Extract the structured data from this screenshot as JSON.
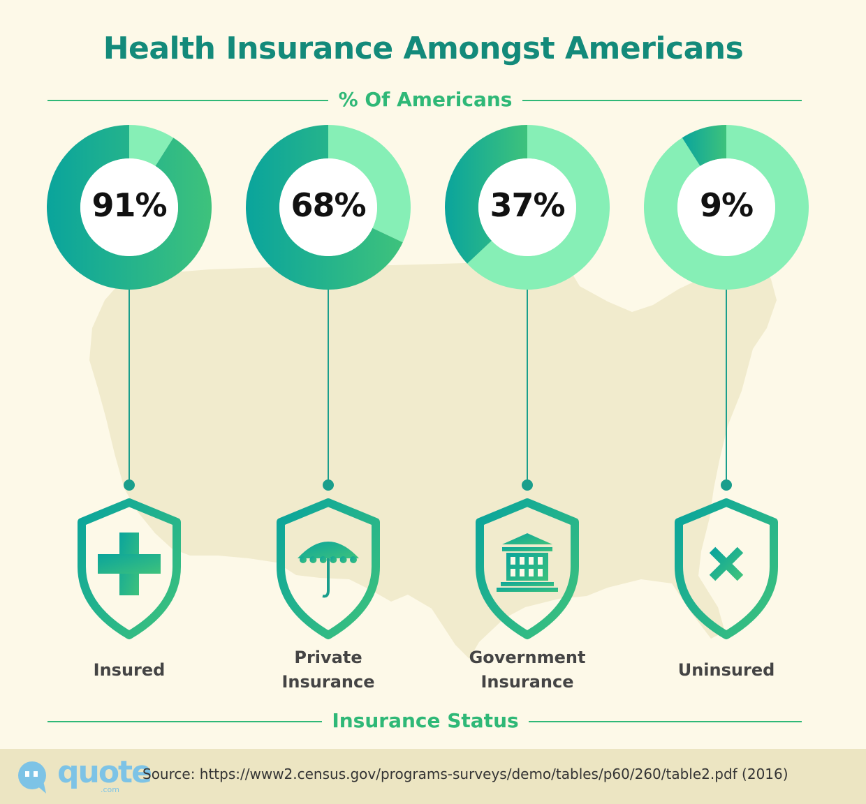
{
  "header": {
    "title": "Health Insurance Amongst Americans",
    "top_axis_label": "% Of Americans",
    "bottom_axis_label": "Insurance Status"
  },
  "chart_data": {
    "type": "donut",
    "title": "Health Insurance Amongst Americans",
    "value_label": "% Of Americans",
    "category_label": "Insurance Status",
    "categories": [
      {
        "name": "Insured",
        "lines": [
          "Insured"
        ],
        "value": 91,
        "label": "91%",
        "icon": "plus-icon"
      },
      {
        "name": "Private Insurance",
        "lines": [
          "Private",
          "Insurance"
        ],
        "value": 68,
        "label": "68%",
        "icon": "umbrella-icon"
      },
      {
        "name": "Government Insurance",
        "lines": [
          "Government",
          "Insurance"
        ],
        "value": 37,
        "label": "37%",
        "icon": "government-building-icon"
      },
      {
        "name": "Uninsured",
        "lines": [
          "Uninsured"
        ],
        "value": 9,
        "label": "9%",
        "icon": "x-mark-icon"
      }
    ],
    "colors": {
      "filled_start": "#0aa49c",
      "filled_end": "#3ec27c",
      "remainder": "#86efb6",
      "connector": "#1a9e8c"
    }
  },
  "footer": {
    "logo": "quote",
    "logo_suffix": ".com",
    "source": "Source: https://www2.census.gov/programs-surveys/demo/tables/p60/260/table2.pdf (2016)"
  },
  "colors": {
    "background": "#fdf9e8",
    "map": "#f1ebcd",
    "title": "#138a7a",
    "accent": "#2fb877",
    "footer_band": "#ece5c2",
    "logo": "#7dc3e6"
  }
}
